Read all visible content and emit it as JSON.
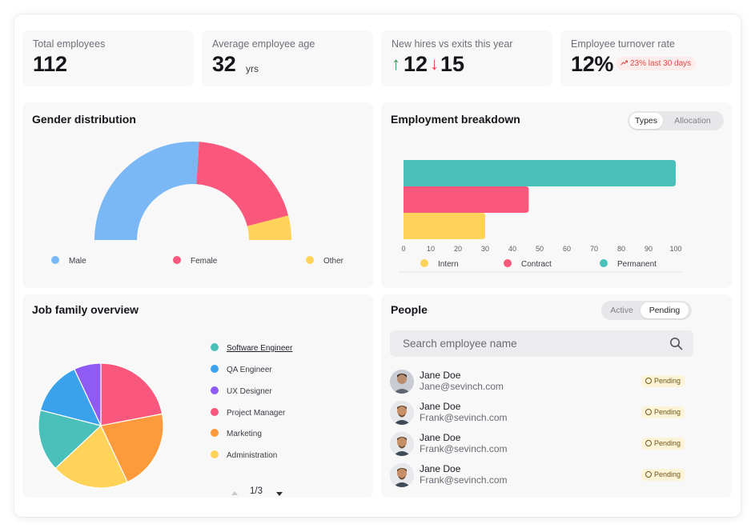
{
  "kpis": {
    "total_employees": {
      "label": "Total employees",
      "value": "112"
    },
    "avg_age": {
      "label": "Average employee age",
      "value": "32",
      "unit": "yrs"
    },
    "hires_exits": {
      "label": "New hires vs exits this year",
      "up_icon": "arrow-up-icon",
      "hires": "12",
      "down_icon": "arrow-down-icon",
      "exits": "15",
      "up_color": "#2e9b52",
      "down_color": "#e0453a"
    },
    "turnover": {
      "label": "Employee turnover rate",
      "value": "12%",
      "trend_icon": "trending-up-icon",
      "trend_text": "23% last 30 days"
    }
  },
  "gender": {
    "title": "Gender distribution",
    "legend": [
      {
        "label": "Male",
        "color": "#7ab8f5"
      },
      {
        "label": "Female",
        "color": "#f9577b"
      },
      {
        "label": "Other",
        "color": "#ffd25a"
      }
    ]
  },
  "employment": {
    "title": "Employment breakdown",
    "toggle": [
      "Types",
      "Allocation"
    ],
    "toggle_active": "Types",
    "legend": [
      {
        "label": "Intern",
        "color": "#ffd25a"
      },
      {
        "label": "Contract",
        "color": "#f9577b"
      },
      {
        "label": "Permanent",
        "color": "#4ac0bb"
      }
    ]
  },
  "job_family": {
    "title": "Job family overview",
    "legend": [
      {
        "label": "Software Engineer",
        "color": "#4ac0bb",
        "active": true
      },
      {
        "label": "QA Engineer",
        "color": "#3aa2ec"
      },
      {
        "label": "UX Designer",
        "color": "#8f5bf5"
      },
      {
        "label": "Project Manager",
        "color": "#f9577b"
      },
      {
        "label": "Marketing",
        "color": "#fd9b3c"
      },
      {
        "label": "Administration",
        "color": "#ffd25a"
      }
    ],
    "pager": {
      "prev_icon": "triangle-up-icon",
      "text": "1/3",
      "next_icon": "triangle-down-icon"
    }
  },
  "people": {
    "title": "People",
    "toggle": [
      "Active",
      "Pending"
    ],
    "toggle_active": "Pending",
    "search": {
      "placeholder": "Search employee name",
      "icon": "search-icon"
    },
    "rows": [
      {
        "name": "Jane Doe",
        "email": "Jane@sevinch.com",
        "status": "Pending",
        "status_icon": "clock-icon"
      },
      {
        "name": "Jane Doe",
        "email": "Frank@sevinch.com",
        "status": "Pending",
        "status_icon": "clock-icon"
      },
      {
        "name": "Jane Doe",
        "email": "Frank@sevinch.com",
        "status": "Pending",
        "status_icon": "clock-icon"
      },
      {
        "name": "Jane Doe",
        "email": "Frank@sevinch.com",
        "status": "Pending",
        "status_icon": "clock-icon"
      }
    ]
  },
  "chart_data": [
    {
      "type": "pie",
      "variant": "half-donut",
      "title": "Gender distribution",
      "categories": [
        "Male",
        "Female",
        "Other"
      ],
      "values": [
        52,
        40,
        8
      ],
      "colors": [
        "#7ab8f5",
        "#f9577b",
        "#ffd25a"
      ]
    },
    {
      "type": "bar",
      "orientation": "horizontal",
      "title": "Employment breakdown",
      "categories": [
        "Permanent",
        "Contract",
        "Intern"
      ],
      "values": [
        100,
        46,
        30
      ],
      "colors": [
        "#4ac0bb",
        "#f9577b",
        "#ffd25a"
      ],
      "xlim": [
        0,
        100
      ],
      "xticks": [
        0,
        10,
        20,
        30,
        40,
        50,
        60,
        70,
        80,
        90,
        100
      ],
      "grid": false,
      "legend": "bottom"
    },
    {
      "type": "pie",
      "title": "Job family overview",
      "categories": [
        "Project Manager",
        "Marketing",
        "Administration",
        "Software Engineer",
        "QA Engineer",
        "UX Designer"
      ],
      "values": [
        22,
        21,
        20,
        16,
        14,
        7
      ],
      "colors": [
        "#f9577b",
        "#fd9b3c",
        "#ffd25a",
        "#4ac0bb",
        "#3aa2ec",
        "#8f5bf5"
      ],
      "legend": "right"
    }
  ]
}
